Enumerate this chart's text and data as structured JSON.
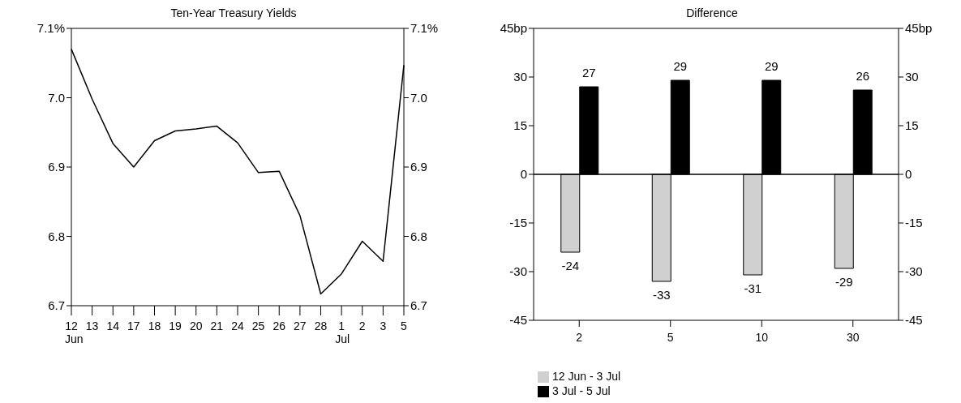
{
  "chart_data": [
    {
      "type": "line",
      "title": "Ten-Year Treasury Yields",
      "categories": [
        "12\nJun",
        "13",
        "14",
        "17",
        "18",
        "19",
        "20",
        "21",
        "24",
        "25",
        "26",
        "27",
        "28",
        "1\nJul",
        "2",
        "3",
        "5"
      ],
      "series": [
        {
          "color": "#000000",
          "values": [
            7.07,
            6.998,
            6.934,
            6.9,
            6.938,
            6.952,
            6.955,
            6.959,
            6.935,
            6.892,
            6.894,
            6.83,
            6.717,
            6.746,
            6.793,
            6.764,
            7.047
          ]
        }
      ],
      "ylim": [
        6.7,
        7.1
      ],
      "yticks": [
        6.7,
        6.8,
        6.9,
        {
          "value": 7,
          "label": "7.0"
        },
        {
          "value": 7.1,
          "label": "7.1%"
        }
      ],
      "y2lim": [
        6.7,
        7.1
      ],
      "y2ticks": [
        6.7,
        6.8,
        6.9,
        {
          "value": 7,
          "label": "7.0"
        },
        {
          "value": 7.1,
          "label": "7.1%"
        }
      ],
      "grid": false,
      "legend": false,
      "marker": "none",
      "line_style": "solid"
    },
    {
      "type": "bar",
      "title": "Difference",
      "categories": [
        "2",
        "5",
        "10",
        "30"
      ],
      "series": [
        {
          "name": "12 Jun - 3 Jul",
          "color": "#d0d0d0",
          "values": [
            -24,
            -33,
            -31,
            -29
          ]
        },
        {
          "name": "3 Jul - 5 Jul",
          "color": "#000000",
          "values": [
            27,
            29,
            29,
            26
          ]
        }
      ],
      "ylim": [
        -45,
        45
      ],
      "yticks": [
        -45,
        -30,
        -15,
        0,
        15,
        30,
        {
          "value": 45,
          "label": "45bp"
        }
      ],
      "y2lim": [
        -45,
        45
      ],
      "y2ticks": [
        -45,
        -30,
        -15,
        0,
        15,
        30,
        {
          "value": 45,
          "label": "45bp"
        }
      ],
      "ref_lines": [
        {
          "axis": "y",
          "value": 0
        }
      ],
      "data_labels": true,
      "grid": false,
      "legend": "bottom left"
    }
  ]
}
